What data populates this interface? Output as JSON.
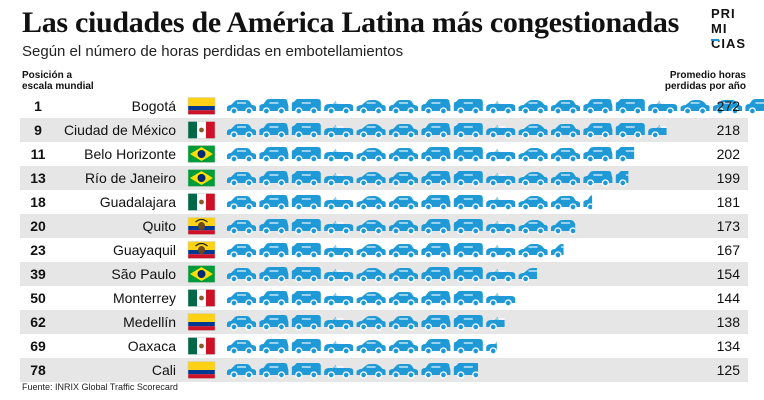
{
  "header": {
    "title": "Las ciudades de América Latina más congestionadas",
    "subtitle": "Según el número de horas perdidas en embotellamientos",
    "logo_lines": [
      "PRI",
      "MI",
      "CIAS"
    ],
    "rank_label": "Posición a escala mundial",
    "hours_label": "Promedio horas perdidas por año"
  },
  "footer": {
    "source": "Fuente: INRIX Global Traffic Scorecard"
  },
  "colors": {
    "car": "#1f9ad6",
    "row_alt": "#e6e6e6",
    "text": "#111111"
  },
  "chart_data": {
    "type": "bar",
    "title": "Las ciudades de América Latina más congestionadas",
    "subtitle": "Según el número de horas perdidas en embotellamientos",
    "unit_per_icon": 16,
    "categories": [
      "Bogotá",
      "Ciudad de México",
      "Belo Horizonte",
      "Río de Janeiro",
      "Guadalajara",
      "Quito",
      "Guayaquil",
      "São Paulo",
      "Monterrey",
      "Medellín",
      "Oaxaca",
      "Cali"
    ],
    "ranks": [
      "1",
      "9",
      "11",
      "13",
      "18",
      "20",
      "23",
      "39",
      "50",
      "62",
      "69",
      "78"
    ],
    "flags": [
      "colombia",
      "mexico",
      "brazil",
      "brazil",
      "mexico",
      "ecuador",
      "ecuador",
      "brazil",
      "mexico",
      "colombia",
      "mexico",
      "colombia"
    ],
    "values": [
      272,
      218,
      202,
      199,
      181,
      173,
      167,
      154,
      144,
      138,
      134,
      125
    ],
    "series": [
      {
        "name": "",
        "values": [
          272,
          218,
          202,
          199,
          181,
          173,
          167,
          154,
          144,
          138,
          134,
          125
        ]
      }
    ],
    "xlim": [
      0,
      272
    ]
  }
}
